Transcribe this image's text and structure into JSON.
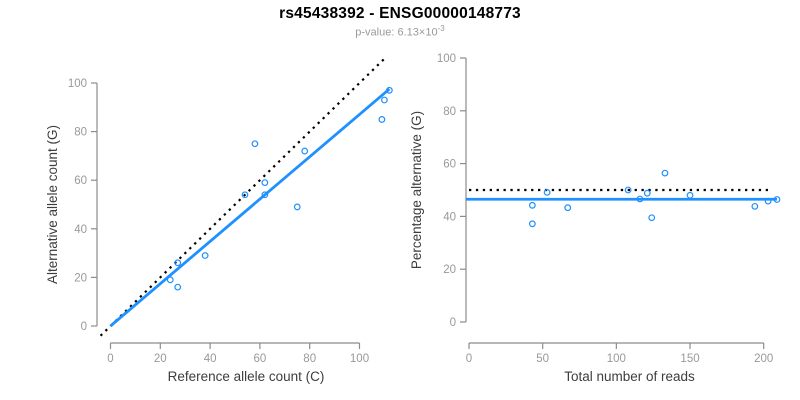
{
  "page": {
    "background": "#ffffff"
  },
  "header": {
    "title": "rs45438392 - ENSG00000148773",
    "p_label": "p-value: ",
    "p_mantissa": "6.13",
    "p_times": "×10",
    "p_exponent": "-3"
  },
  "colors": {
    "line_blue": "#1E90FF",
    "dotted_line": "#000000",
    "axis": "#8c8c8c",
    "tick_text": "#999999",
    "axis_title_text": "#3d3d3d",
    "title_text": "#000000",
    "subtitle_text": "#9a9a9a"
  },
  "chart_data": [
    {
      "id": "ref-vs-alt",
      "type": "scatter",
      "title": "",
      "xlabel": "Reference allele count (C)",
      "ylabel": "Alternative allele count (G)",
      "x_ticks": [
        0,
        20,
        40,
        60,
        80,
        100
      ],
      "y_ticks": [
        0,
        20,
        40,
        60,
        80,
        100
      ],
      "xlim": [
        -5,
        114
      ],
      "ylim": [
        -7,
        111
      ],
      "grid": false,
      "legend": "none",
      "points": [
        [
          24,
          19
        ],
        [
          27,
          16
        ],
        [
          27,
          26
        ],
        [
          38,
          29
        ],
        [
          54,
          54
        ],
        [
          58,
          75
        ],
        [
          62,
          59
        ],
        [
          62,
          54
        ],
        [
          75,
          49
        ],
        [
          78,
          72
        ],
        [
          109,
          85
        ],
        [
          110,
          93
        ],
        [
          112,
          97
        ]
      ],
      "lines": [
        {
          "name": "identity-line",
          "style": "dotted",
          "color": "black",
          "points": [
            [
              -4,
              -4
            ],
            [
              111,
              111
            ]
          ]
        },
        {
          "name": "regression-line",
          "style": "solid",
          "color": "blue",
          "points": [
            [
              0,
              0
            ],
            [
              112,
              97.5
            ]
          ]
        }
      ]
    },
    {
      "id": "reads-vs-pct",
      "type": "scatter",
      "title": "",
      "xlabel": "Total number of reads",
      "ylabel": "Percentage alternative (G)",
      "x_ticks": [
        0,
        50,
        100,
        150,
        200
      ],
      "y_ticks": [
        0,
        20,
        40,
        60,
        80,
        100
      ],
      "xlim": [
        -2,
        220
      ],
      "ylim": [
        -8,
        100
      ],
      "grid": false,
      "legend": "none",
      "points": [
        [
          43,
          44.2
        ],
        [
          43,
          37.2
        ],
        [
          53,
          49.1
        ],
        [
          67,
          43.3
        ],
        [
          108,
          50.0
        ],
        [
          133,
          56.4
        ],
        [
          121,
          48.8
        ],
        [
          116,
          46.6
        ],
        [
          124,
          39.5
        ],
        [
          150,
          48.0
        ],
        [
          194,
          43.8
        ],
        [
          203,
          45.8
        ],
        [
          209,
          46.4
        ]
      ],
      "lines": [
        {
          "name": "expected-50pct-line",
          "style": "dotted",
          "color": "black",
          "points": [
            [
              0,
              50
            ],
            [
              205,
              50
            ]
          ]
        },
        {
          "name": "mean-pct-line",
          "style": "solid",
          "color": "blue",
          "points": [
            [
              -2,
              46.5
            ],
            [
              209,
              46.5
            ]
          ]
        }
      ]
    }
  ]
}
